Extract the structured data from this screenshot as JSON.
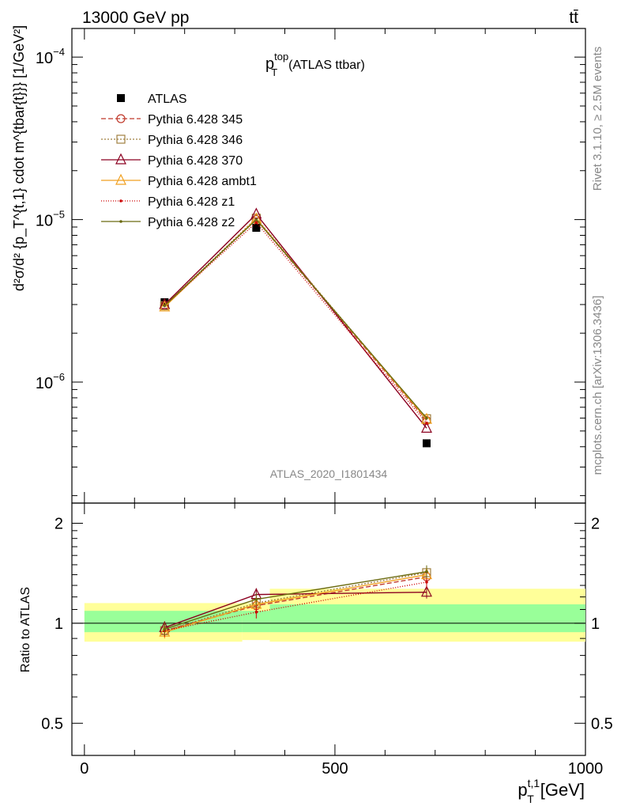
{
  "header": {
    "energy_label": "13000 GeV pp",
    "process_label": "tt̄"
  },
  "side_labels": {
    "rivet": "Rivet 3.1.10, ≥ 2.5M events",
    "mcplots": "mcplots.cern.ch [arXiv:1306.3436]"
  },
  "chart_data": [
    {
      "type": "line",
      "panel": "main",
      "title_main": "p",
      "title_sup": "top",
      "title_sub": "T",
      "title_rest": "(ATLAS ttbar)",
      "watermark": "ATLAS_2020_I1801434",
      "ylabel": "d²σ/d² {p_T^{t,1} cdot m^{tbar{t}}} [1/GeV²]",
      "y_scale": "log",
      "ylim": [
        1.8e-07,
        0.00015
      ],
      "yticks": [
        {
          "value": 1e-06,
          "base": "10",
          "exp": "−6"
        },
        {
          "value": 1e-05,
          "base": "10",
          "exp": "−5"
        },
        {
          "value": 0.0001,
          "base": "10",
          "exp": "−4"
        }
      ],
      "xlim": [
        -25,
        1000
      ],
      "x": [
        160,
        343,
        683
      ],
      "series": [
        {
          "name": "ATLAS",
          "values": [
            3.1e-06,
            8.9e-06,
            4.2e-07
          ],
          "color": "#000000",
          "marker": "filled-square",
          "dash": "none"
        },
        {
          "name": "Pythia 6.428 345",
          "values": [
            2.95e-06,
            1e-05,
            5.8e-07
          ],
          "color": "#c0392b",
          "marker": "open-circle",
          "dash": "6,3"
        },
        {
          "name": "Pythia 6.428 346",
          "values": [
            2.95e-06,
            1.02e-05,
            5.95e-07
          ],
          "color": "#a08040",
          "marker": "open-square",
          "dash": "2,2"
        },
        {
          "name": "Pythia 6.428 370",
          "values": [
            3e-06,
            1.08e-05,
            5.2e-07
          ],
          "color": "#8b0020",
          "marker": "open-triangle",
          "dash": "none"
        },
        {
          "name": "Pythia 6.428 ambt1",
          "values": [
            2.9e-06,
            1.01e-05,
            5.9e-07
          ],
          "color": "#f0a020",
          "marker": "open-triangle",
          "dash": "none"
        },
        {
          "name": "Pythia 6.428 z1",
          "values": [
            2.95e-06,
            9.6e-06,
            5.6e-07
          ],
          "color": "#cc0000",
          "marker": "small-dot",
          "dash": "1,2"
        },
        {
          "name": "Pythia 6.428 z2",
          "values": [
            2.95e-06,
            1e-05,
            6e-07
          ],
          "color": "#6b6b10",
          "marker": "small-dot",
          "dash": "none"
        }
      ]
    },
    {
      "type": "line",
      "panel": "ratio",
      "ylabel": "Ratio to ATLAS",
      "xlabel_main": "p",
      "xlabel_sup": "t,1",
      "xlabel_sub": "T",
      "xlabel_unit": "[GeV]",
      "ylim": [
        0.4,
        2.3
      ],
      "xlim": [
        -25,
        1000
      ],
      "yticks": [
        {
          "value": 0.5,
          "label": "0.5"
        },
        {
          "value": 1,
          "label": "1"
        },
        {
          "value": 2,
          "label": "2"
        }
      ],
      "xticks": [
        {
          "value": 0,
          "label": "0"
        },
        {
          "value": 500,
          "label": "500"
        },
        {
          "value": 1000,
          "label": "1000"
        }
      ],
      "bins": [
        {
          "lo": 0,
          "hi": 315,
          "stat_band": [
            0.94,
            1.09
          ],
          "total_band": [
            0.88,
            1.15
          ]
        },
        {
          "lo": 315,
          "hi": 370,
          "stat_band": [
            0.94,
            1.09
          ],
          "total_band": [
            0.89,
            1.15
          ]
        },
        {
          "lo": 370,
          "hi": 1000,
          "stat_band": [
            0.94,
            1.14
          ],
          "total_band": [
            0.88,
            1.27
          ]
        }
      ],
      "x": [
        160,
        343,
        683
      ],
      "series": [
        {
          "name": "Pythia 6.428 345",
          "values": [
            0.95,
            1.13,
            1.38
          ],
          "color": "#c0392b",
          "dash": "6,3"
        },
        {
          "name": "Pythia 6.428 346",
          "values": [
            0.95,
            1.15,
            1.42
          ],
          "color": "#a08040",
          "dash": "2,2"
        },
        {
          "name": "Pythia 6.428 370",
          "values": [
            0.97,
            1.22,
            1.24
          ],
          "color": "#8b0020",
          "dash": "none"
        },
        {
          "name": "Pythia 6.428 ambt1",
          "values": [
            0.94,
            1.14,
            1.4
          ],
          "color": "#f0a020",
          "dash": "none"
        },
        {
          "name": "Pythia 6.428 z1",
          "values": [
            0.95,
            1.08,
            1.33
          ],
          "color": "#cc0000",
          "dash": "1,2"
        },
        {
          "name": "Pythia 6.428 z2",
          "values": [
            0.96,
            1.18,
            1.43
          ],
          "color": "#6b6b10",
          "dash": "none"
        }
      ]
    }
  ]
}
